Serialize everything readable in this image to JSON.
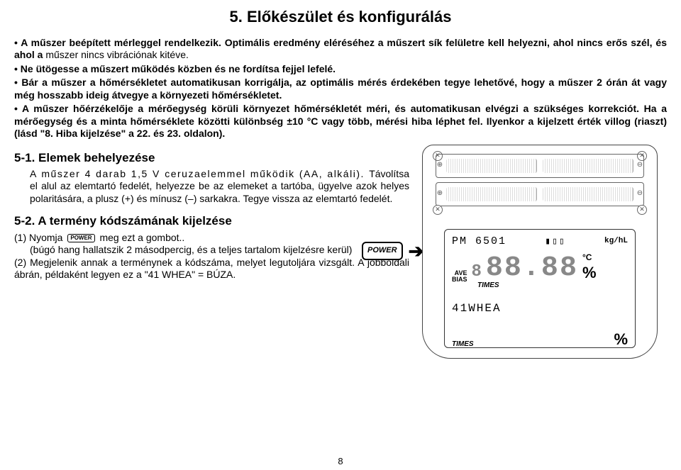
{
  "title": "5. Előkészület és konfigurálás",
  "bullets": {
    "b1a": "A műszer beépített mérleggel rendelkezik. Optimális eredmény eléréséhez a műszert sík felületre kell helyezni, ahol nincs erős szél, és ahol a ",
    "b1b": "műszer nincs vibrációnak kitéve.",
    "b2": "Ne ütögesse a műszert működés közben és ne fordítsa fejjel lefelé.",
    "b3": "Bár a műszer a hőmérsékletet automatikusan korrigálja, az optimális mérés érdekében tegye lehetővé, hogy a műszer 2 órán át vagy még hosszabb ideig átvegye a környezeti hőmérsékletet.",
    "b4": "A műszer hőérzékelője a mérőegység körüli környezet hőmérsékletét méri, és automatikusan elvégzi a szükséges korrekciót. Ha a mérőegység és a minta hőmérséklete közötti különbség ±10 °C vagy több, mérési hiba léphet fel. Ilyenkor a kijelzett érték villog (riaszt) (lásd \"8. Hiba kijelzése\" a 22. és 23. oldalon)."
  },
  "section51": {
    "heading": "5-1. Elemek behelyezése",
    "body1": "A műszer 4 darab 1,5 V ceruzaelemmel működik (AA, alkáli). ",
    "body2": "Távolítsa el alul az elemtartó fedelét, helyezze be az elemeket a tartóba, ügyelve azok helyes polaritására, a plusz (+) és mínusz (–) sarkakra. Tegye vissza az elemtartó fedelét."
  },
  "section52": {
    "heading": "5-2. A termény kódszámának kijelzése",
    "line1a": "(1) Nyomja ",
    "line1b": " meg ezt a gombot..",
    "line2": "(búgó hang hallatszik 2 másodpercig, és a teljes tartalom kijelzésre kerül)",
    "line3": "(2) Megjelenik annak a terménynek a kódszáma, melyet legutoljára vizsgált. A jobboldali ábrán, példaként legyen ez a \"41 WHEA\" = BÚZA."
  },
  "power_label": "POWER",
  "power_inline": "POWER",
  "lcd": {
    "top_left": "PM 6501",
    "kg": "kg/hL",
    "ave": "AVE",
    "bias": "BIAS",
    "small8": "8",
    "big": "88.88",
    "degc": "°C",
    "percent": "%",
    "times": "TIMES",
    "mid": "41WHEA",
    "bot_times": "TIMES",
    "bot_percent": "%"
  },
  "pagenum": "8"
}
